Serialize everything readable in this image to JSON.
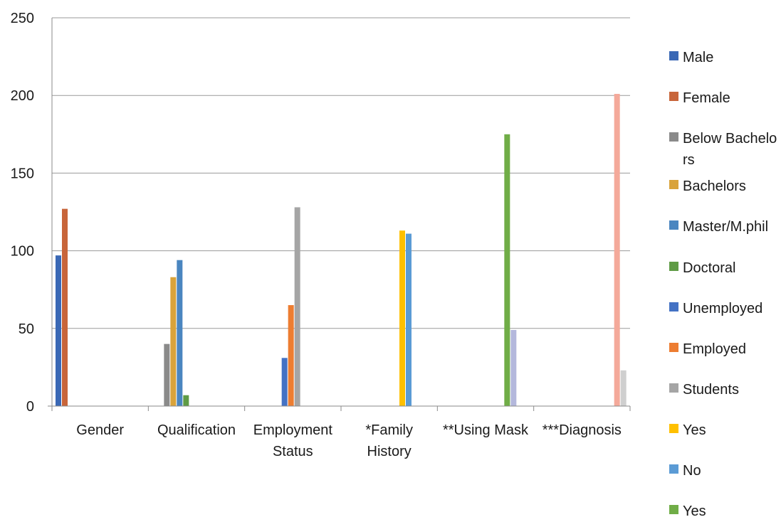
{
  "chart_data": {
    "type": "bar",
    "title": "",
    "xlabel": "",
    "ylabel": "",
    "ylim": [
      0,
      250
    ],
    "yticks": [
      0,
      50,
      100,
      150,
      200,
      250
    ],
    "grid": true,
    "legend_position": "right",
    "categories": [
      "Gender",
      "Qualification",
      "Employment Status",
      "*Family History",
      "**Using Mask",
      "***Diagnosis"
    ],
    "series": [
      {
        "name": "Male",
        "color": "#3a68b5",
        "values": [
          97,
          null,
          null,
          null,
          null,
          null
        ]
      },
      {
        "name": "Female",
        "color": "#c8653a",
        "values": [
          127,
          null,
          null,
          null,
          null,
          null
        ]
      },
      {
        "name": "Below Bachelors",
        "color": "#8a8a8a",
        "values": [
          null,
          40,
          null,
          null,
          null,
          null
        ]
      },
      {
        "name": "Bachelors",
        "color": "#d9a33a",
        "values": [
          null,
          83,
          null,
          null,
          null,
          null
        ]
      },
      {
        "name": "Master/M.phil",
        "color": "#4a86c0",
        "values": [
          null,
          94,
          null,
          null,
          null,
          null
        ]
      },
      {
        "name": "Doctoral",
        "color": "#5f9b45",
        "values": [
          null,
          7,
          null,
          null,
          null,
          null
        ]
      },
      {
        "name": "Unemployed",
        "color": "#4472c4",
        "values": [
          null,
          null,
          31,
          null,
          null,
          null
        ]
      },
      {
        "name": "Employed",
        "color": "#ed7d31",
        "values": [
          null,
          null,
          65,
          null,
          null,
          null
        ]
      },
      {
        "name": "Students",
        "color": "#a5a5a5",
        "values": [
          null,
          null,
          128,
          null,
          null,
          null
        ]
      },
      {
        "name": "Yes",
        "color": "#ffc000",
        "values": [
          null,
          null,
          null,
          113,
          null,
          null
        ]
      },
      {
        "name": "No",
        "color": "#5b9bd5",
        "values": [
          null,
          null,
          null,
          111,
          null,
          null
        ]
      },
      {
        "name": "Yes",
        "color": "#70ad47",
        "values": [
          null,
          null,
          null,
          null,
          175,
          null
        ]
      },
      {
        "name": "",
        "color": "#b4b8dc",
        "values": [
          null,
          null,
          null,
          null,
          49,
          null
        ]
      },
      {
        "name": "",
        "color": "#f4a99a",
        "values": [
          null,
          null,
          null,
          null,
          null,
          201
        ]
      },
      {
        "name": "",
        "color": "#cfcfcf",
        "values": [
          null,
          null,
          null,
          null,
          null,
          23
        ]
      }
    ]
  }
}
